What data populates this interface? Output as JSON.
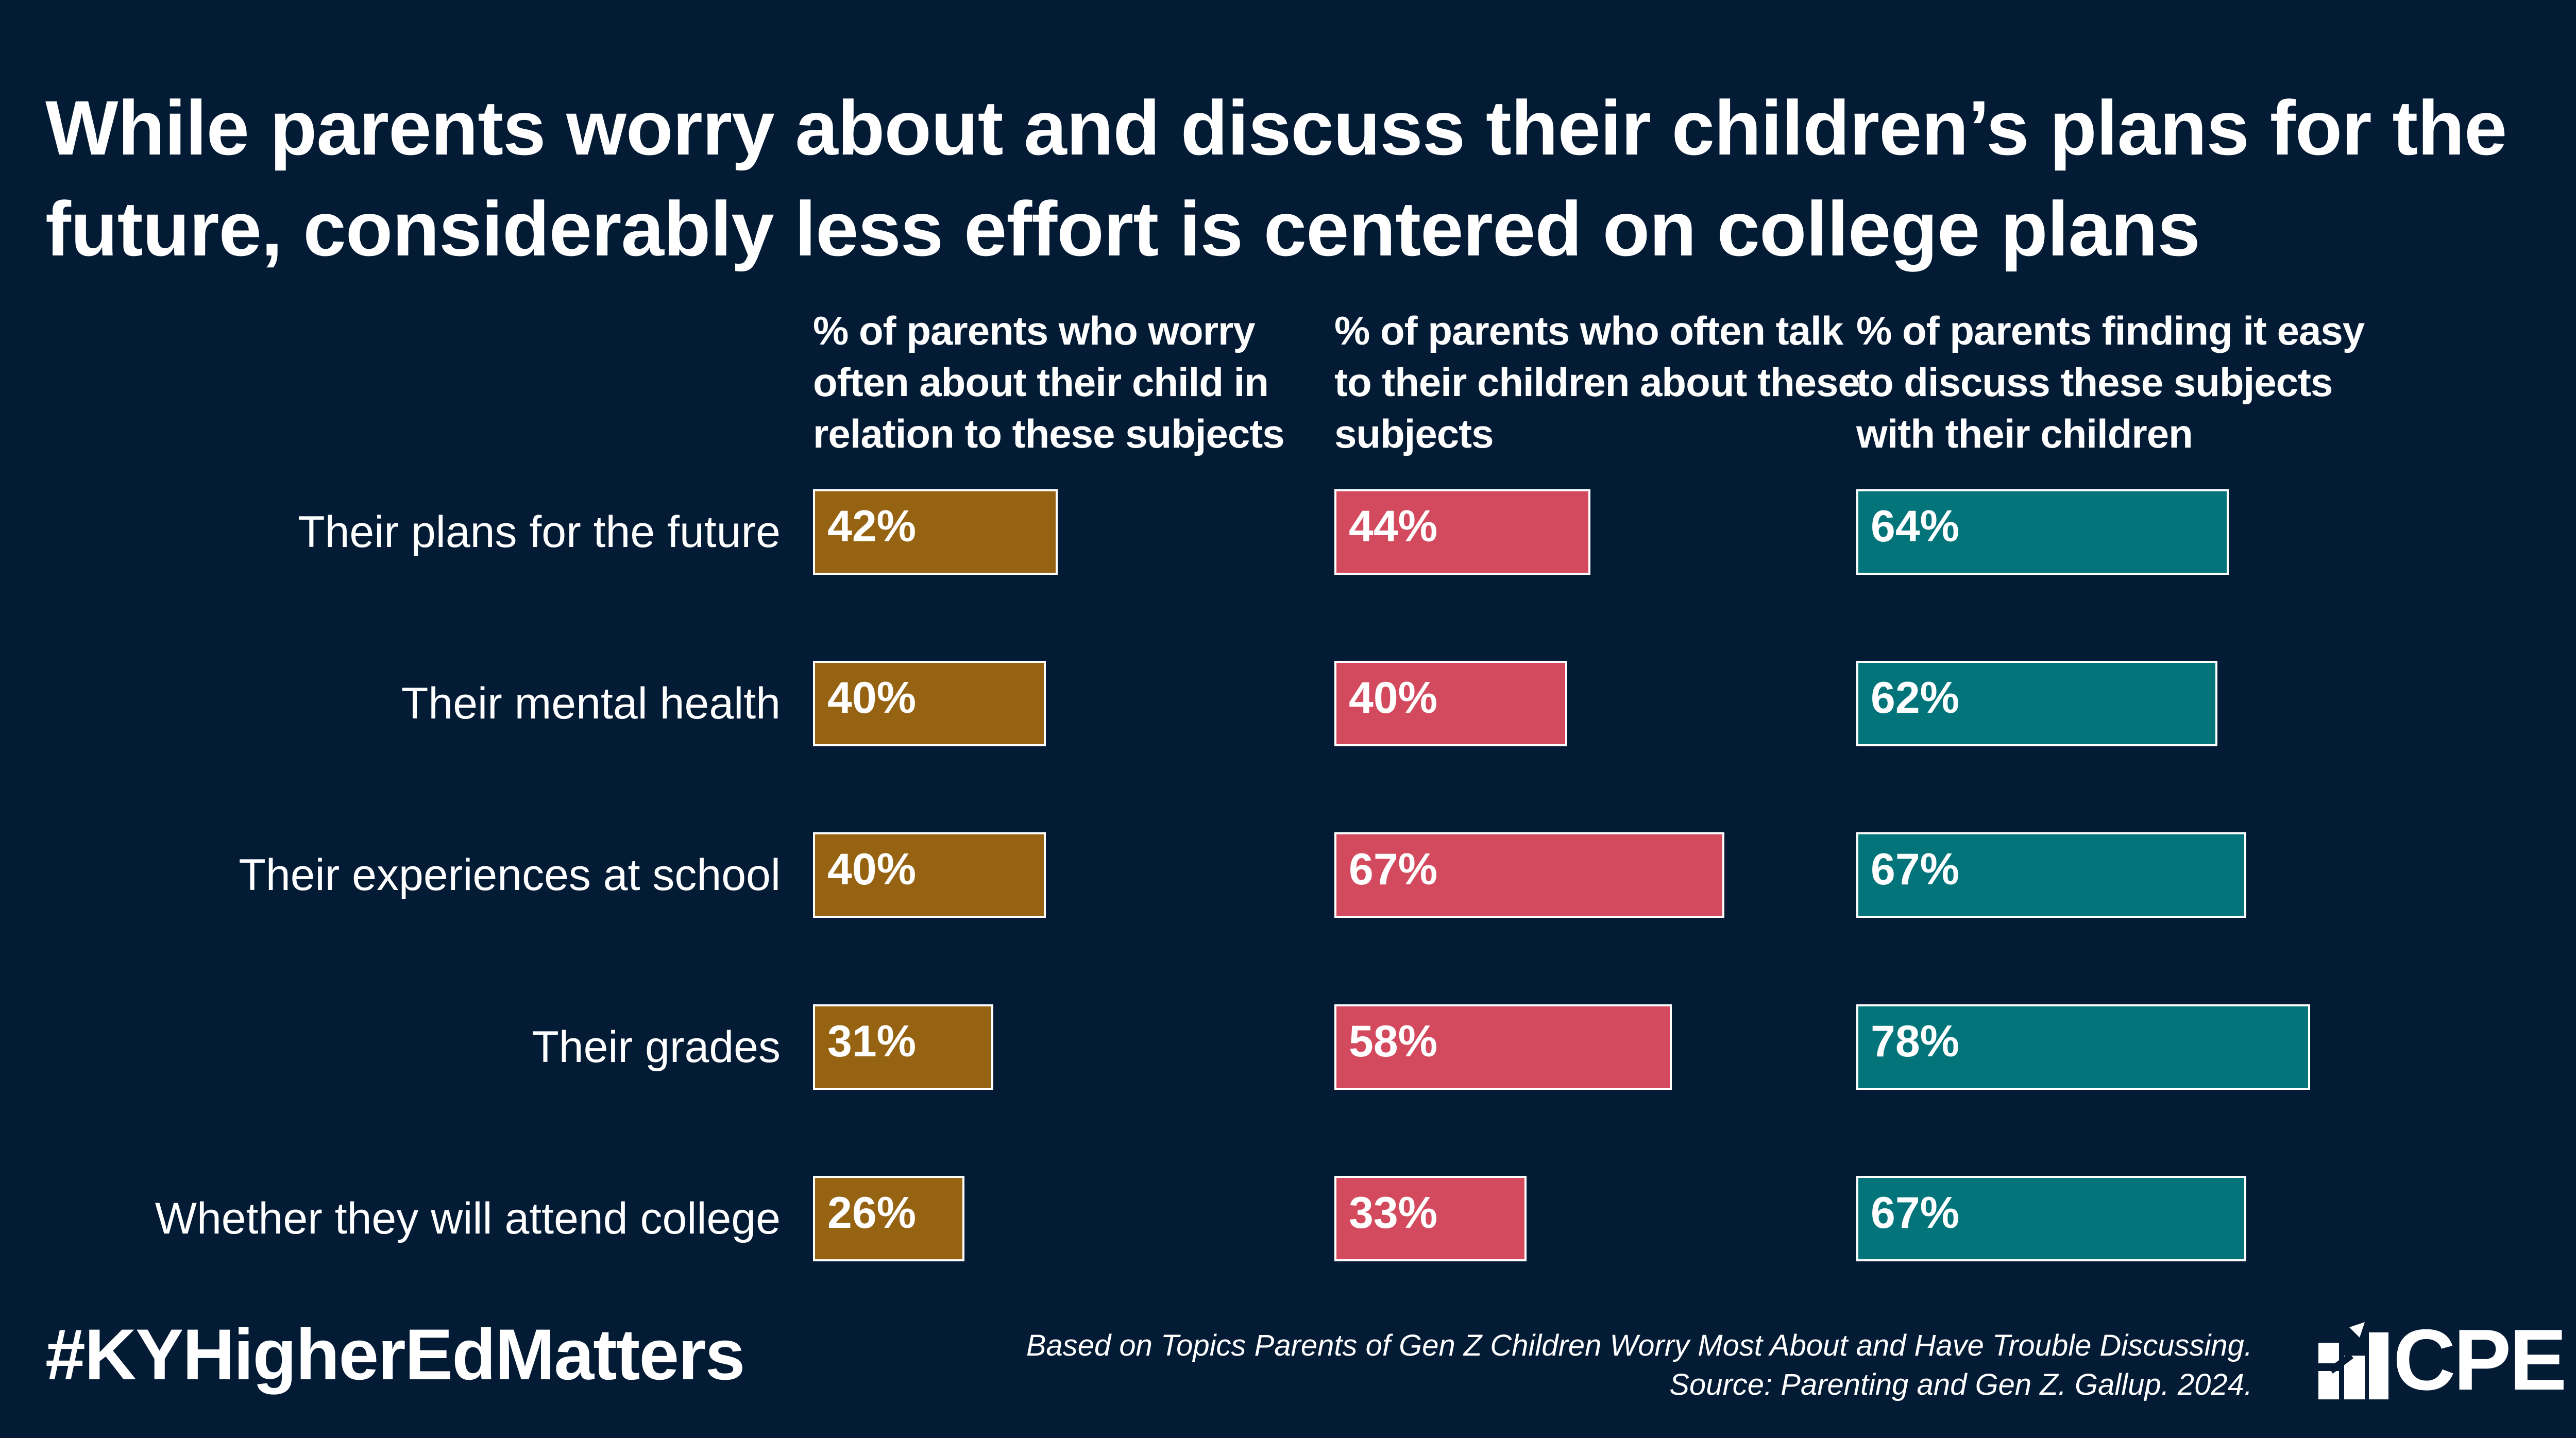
{
  "title": "While parents worry about and discuss their children’s plans for the future, considerably less effort is centered on college plans",
  "chart_data": {
    "type": "bar",
    "orientation": "horizontal",
    "categories": [
      "Their plans for the future",
      "Their mental health",
      "Their experiences at school",
      "Their grades",
      "Whether they will attend college"
    ],
    "series": [
      {
        "name": "% of parents who worry often about their child in relation to these subjects",
        "color": "#956311",
        "values": [
          42,
          40,
          40,
          31,
          26
        ],
        "labels": [
          "42%",
          "40%",
          "40%",
          "31%",
          "26%"
        ]
      },
      {
        "name": "% of parents who often talk to their children about these subjects",
        "color": "#d34a5e",
        "values": [
          44,
          40,
          67,
          58,
          33
        ],
        "labels": [
          "44%",
          "40%",
          "67%",
          "58%",
          "33%"
        ]
      },
      {
        "name": "% of parents finding it easy to discuss these subjects with their children",
        "color": "#02747a",
        "values": [
          64,
          62,
          67,
          78,
          67
        ],
        "labels": [
          "64%",
          "62%",
          "67%",
          "78%",
          "67%"
        ]
      }
    ],
    "xlim": [
      0,
      100
    ]
  },
  "footer": {
    "hashtag": "#KYHigherEdMatters",
    "source_line1": "Based on Topics Parents of Gen Z Children Worry Most About and Have Trouble Discussing.",
    "source_line2": "Source: Parenting and Gen Z. Gallup. 2024.",
    "logo_text": "CPE",
    "logo_icon": "cpe-logo-icon"
  }
}
